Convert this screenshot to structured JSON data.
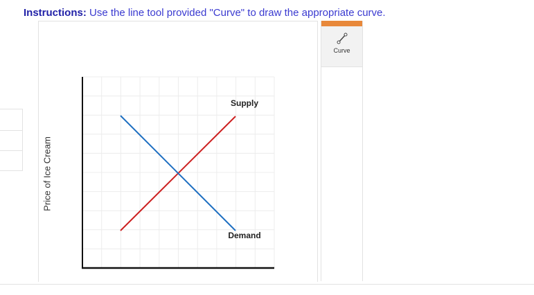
{
  "header": {
    "label": "Instructions:",
    "text": "Use the line tool provided \"Curve\" to draw the appropriate curve."
  },
  "toolbar": {
    "tool": "Curve"
  },
  "graph": {
    "y_axis_label": "Price of Ice Cream",
    "curves": [
      {
        "label": "Supply"
      },
      {
        "label": "Demand"
      }
    ]
  }
}
